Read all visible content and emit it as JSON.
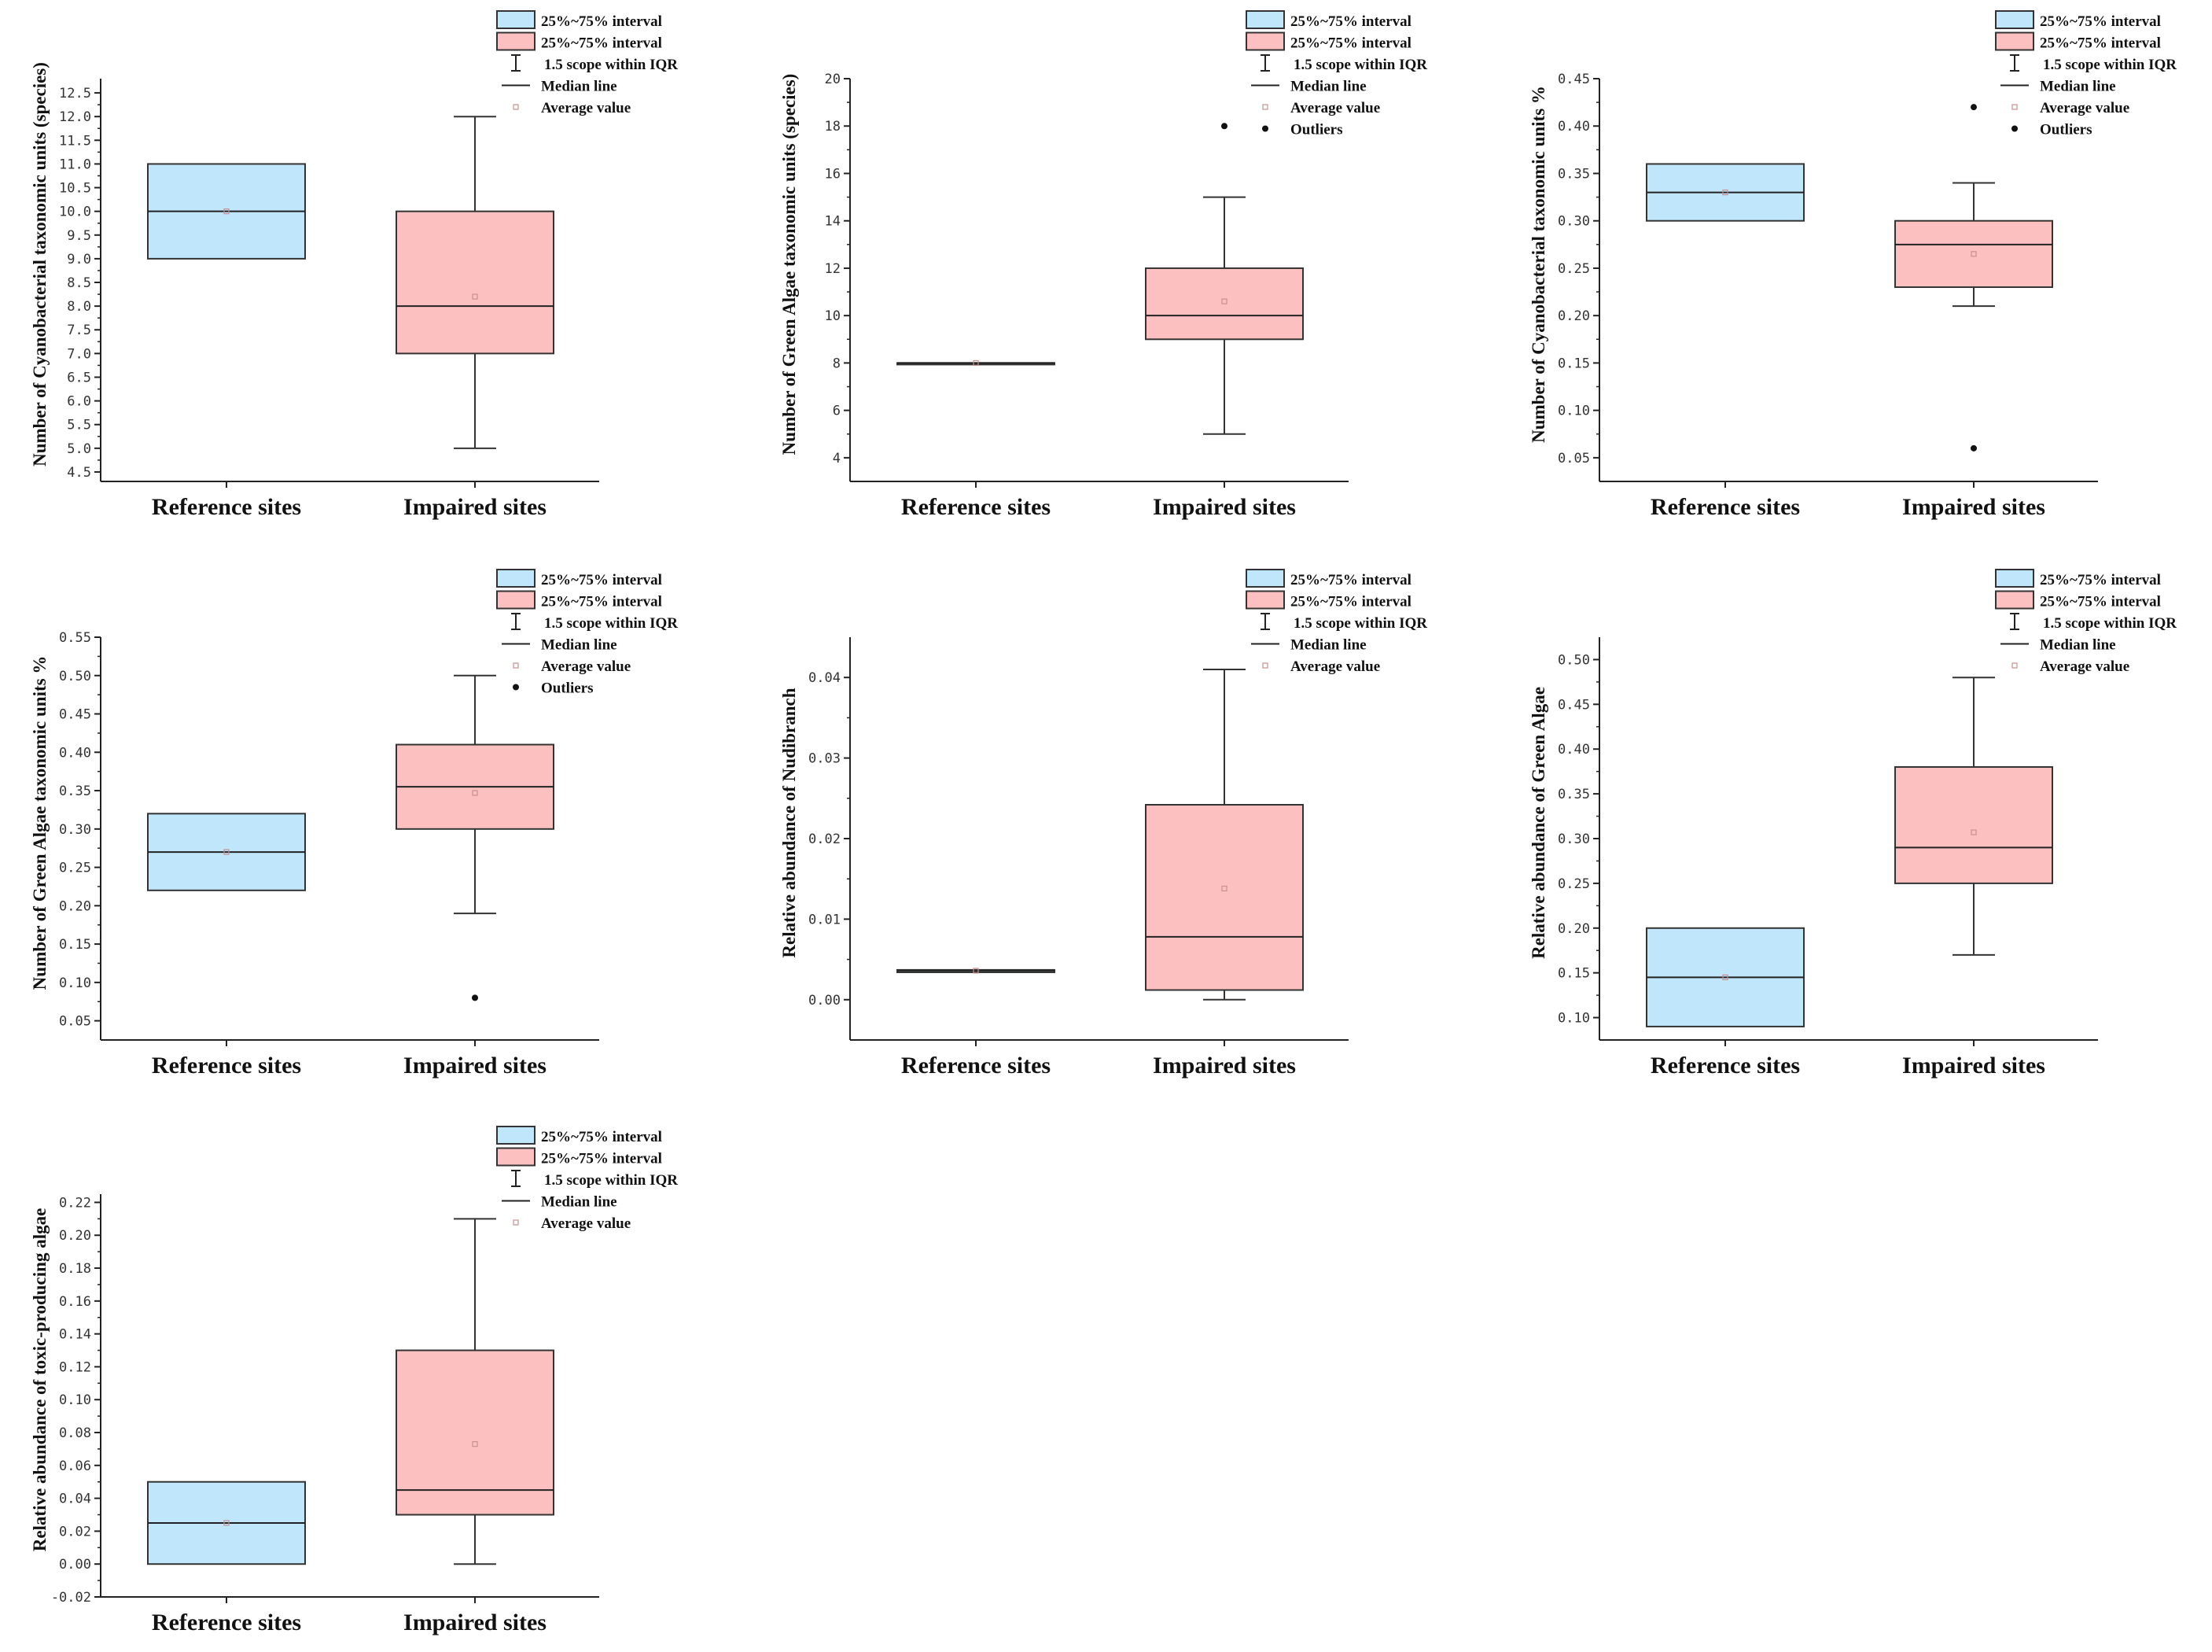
{
  "legend_labels": {
    "ref_box": "25%~75% interval",
    "imp_box": "25%~75% interval",
    "whisker": "1.5 scope within IQR",
    "median": "Median line",
    "mean": "Average value",
    "outlier": "Outliers"
  },
  "colors": {
    "reference_fill": "#bfe6fb",
    "impaired_fill": "#fcc0c0",
    "box_stroke": "#333333",
    "mean_marker": "#c89090"
  },
  "chart_data": [
    {
      "type": "box",
      "ylabel": "Number of Cyanobacterial taxonomic units (species)",
      "ylim": [
        4.3,
        12.8
      ],
      "yticks": [
        "4.5",
        "5.0",
        "5.5",
        "6.0",
        "6.5",
        "7.0",
        "7.5",
        "8.0",
        "8.5",
        "9.0",
        "9.5",
        "10.0",
        "10.5",
        "11.0",
        "11.5",
        "12.0",
        "12.5"
      ],
      "categories": [
        "Reference sites",
        "Impaired sites"
      ],
      "boxes": [
        {
          "q1": 9.0,
          "median": 10.0,
          "q3": 11.0,
          "whisker_low": 9.0,
          "whisker_high": 11.0,
          "mean": 10.0,
          "outliers": []
        },
        {
          "q1": 7.0,
          "median": 8.0,
          "q3": 10.0,
          "whisker_low": 5.0,
          "whisker_high": 12.0,
          "mean": 8.2,
          "outliers": []
        }
      ],
      "legend": [
        "ref_box",
        "imp_box",
        "whisker",
        "median",
        "mean"
      ]
    },
    {
      "type": "box",
      "ylabel": "Number of Green Algae taxonomic units (species)",
      "ylim": [
        3,
        20
      ],
      "yticks": [
        "4",
        "6",
        "8",
        "10",
        "12",
        "14",
        "16",
        "18",
        "20"
      ],
      "categories": [
        "Reference sites",
        "Impaired sites"
      ],
      "boxes": [
        {
          "q1": 8.0,
          "median": 8.0,
          "q3": 8.0,
          "whisker_low": 8.0,
          "whisker_high": 8.0,
          "mean": 8.0,
          "outliers": []
        },
        {
          "q1": 9.0,
          "median": 10.0,
          "q3": 12.0,
          "whisker_low": 5.0,
          "whisker_high": 15.0,
          "mean": 10.6,
          "outliers": [
            18
          ]
        }
      ],
      "legend": [
        "ref_box",
        "imp_box",
        "whisker",
        "median",
        "mean",
        "outlier"
      ]
    },
    {
      "type": "box",
      "ylabel": "Number of Cyanobacterial taxonomic units %",
      "ylim": [
        0.025,
        0.45
      ],
      "yticks": [
        "0.05",
        "0.10",
        "0.15",
        "0.20",
        "0.25",
        "0.30",
        "0.35",
        "0.40",
        "0.45"
      ],
      "categories": [
        "Reference sites",
        "Impaired sites"
      ],
      "boxes": [
        {
          "q1": 0.3,
          "median": 0.33,
          "q3": 0.36,
          "whisker_low": 0.3,
          "whisker_high": 0.36,
          "mean": 0.33,
          "outliers": []
        },
        {
          "q1": 0.23,
          "median": 0.275,
          "q3": 0.3,
          "whisker_low": 0.21,
          "whisker_high": 0.34,
          "mean": 0.265,
          "outliers": [
            0.42,
            0.06
          ]
        }
      ],
      "legend": [
        "ref_box",
        "imp_box",
        "whisker",
        "median",
        "mean",
        "outlier"
      ]
    },
    {
      "type": "box",
      "ylabel": "Number of Green Algae taxonomic units %",
      "ylim": [
        0.025,
        0.55
      ],
      "yticks": [
        "0.05",
        "0.10",
        "0.15",
        "0.20",
        "0.25",
        "0.30",
        "0.35",
        "0.40",
        "0.45",
        "0.50",
        "0.55"
      ],
      "categories": [
        "Reference sites",
        "Impaired sites"
      ],
      "boxes": [
        {
          "q1": 0.22,
          "median": 0.27,
          "q3": 0.32,
          "whisker_low": 0.22,
          "whisker_high": 0.32,
          "mean": 0.27,
          "outliers": []
        },
        {
          "q1": 0.3,
          "median": 0.355,
          "q3": 0.41,
          "whisker_low": 0.19,
          "whisker_high": 0.5,
          "mean": 0.347,
          "outliers": [
            0.08
          ]
        }
      ],
      "legend": [
        "ref_box",
        "imp_box",
        "whisker",
        "median",
        "mean",
        "outlier"
      ]
    },
    {
      "type": "box",
      "ylabel": "Relative abundance of Nudibranch",
      "ylim": [
        -0.005,
        0.045
      ],
      "yticks": [
        "0.00",
        "0.01",
        "0.02",
        "0.03",
        "0.04"
      ],
      "categories": [
        "Reference sites",
        "Impaired sites"
      ],
      "boxes": [
        {
          "q1": 0.0034,
          "median": 0.0036,
          "q3": 0.0037,
          "whisker_low": 0.0034,
          "whisker_high": 0.0037,
          "mean": 0.0036,
          "outliers": []
        },
        {
          "q1": 0.0012,
          "median": 0.0078,
          "q3": 0.0242,
          "whisker_low": 0.0,
          "whisker_high": 0.041,
          "mean": 0.0138,
          "outliers": []
        }
      ],
      "legend": [
        "ref_box",
        "imp_box",
        "whisker",
        "median",
        "mean"
      ]
    },
    {
      "type": "box",
      "ylabel": "Relative abundance of Green Algae",
      "ylim": [
        0.075,
        0.525
      ],
      "yticks": [
        "0.10",
        "0.15",
        "0.20",
        "0.25",
        "0.30",
        "0.35",
        "0.40",
        "0.45",
        "0.50"
      ],
      "categories": [
        "Reference sites",
        "Impaired sites"
      ],
      "boxes": [
        {
          "q1": 0.09,
          "median": 0.145,
          "q3": 0.2,
          "whisker_low": 0.09,
          "whisker_high": 0.2,
          "mean": 0.145,
          "outliers": []
        },
        {
          "q1": 0.25,
          "median": 0.29,
          "q3": 0.38,
          "whisker_low": 0.17,
          "whisker_high": 0.48,
          "mean": 0.307,
          "outliers": []
        }
      ],
      "legend": [
        "ref_box",
        "imp_box",
        "whisker",
        "median",
        "mean"
      ]
    },
    {
      "type": "box",
      "ylabel": "Relative abundance of toxic-producing algae",
      "ylim": [
        -0.02,
        0.225
      ],
      "yticks": [
        "-0.02",
        "0.00",
        "0.02",
        "0.04",
        "0.06",
        "0.08",
        "0.10",
        "0.12",
        "0.14",
        "0.16",
        "0.18",
        "0.20",
        "0.22"
      ],
      "categories": [
        "Reference sites",
        "Impaired sites"
      ],
      "boxes": [
        {
          "q1": 0.0,
          "median": 0.025,
          "q3": 0.05,
          "whisker_low": 0.0,
          "whisker_high": 0.05,
          "mean": 0.025,
          "outliers": []
        },
        {
          "q1": 0.03,
          "median": 0.045,
          "q3": 0.13,
          "whisker_low": 0.0,
          "whisker_high": 0.21,
          "mean": 0.073,
          "outliers": []
        }
      ],
      "legend": [
        "ref_box",
        "imp_box",
        "whisker",
        "median",
        "mean"
      ]
    }
  ]
}
